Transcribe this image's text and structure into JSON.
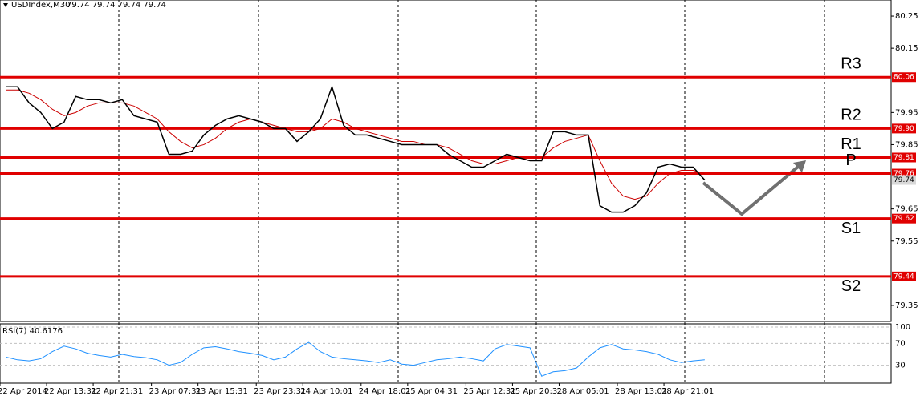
{
  "chart_data": {
    "type": "line",
    "title": "USDIndex,M30",
    "quote": "79.74 79.74 79.74 79.74",
    "color": "#000000",
    "ylim": [
      79.3,
      80.3
    ],
    "yticks": [
      80.25,
      80.15,
      79.95,
      79.85,
      79.65,
      79.55,
      79.35
    ],
    "xlim": [
      0,
      76.5
    ],
    "xticks": [
      {
        "value": 0,
        "label": "22 Apr 2014"
      },
      {
        "value": 4,
        "label": "22 Apr 13:31"
      },
      {
        "value": 8,
        "label": "22 Apr 21:31"
      },
      {
        "value": 13,
        "label": "23 Apr 07:31"
      },
      {
        "value": 17,
        "label": "23 Apr 15:31"
      },
      {
        "value": 22,
        "label": "23 Apr 23:31"
      },
      {
        "value": 26,
        "label": "24 Apr 10:01"
      },
      {
        "value": 31,
        "label": "24 Apr 18:01"
      },
      {
        "value": 35,
        "label": "25 Apr 04:31"
      },
      {
        "value": 40,
        "label": "25 Apr 12:31"
      },
      {
        "value": 44,
        "label": "25 Apr 20:31"
      },
      {
        "value": 48,
        "label": "28 Apr 05:01"
      },
      {
        "value": 53,
        "label": "28 Apr 13:01"
      },
      {
        "value": 57,
        "label": "28 Apr 21:01"
      }
    ],
    "values": [
      80.03,
      80.03,
      79.98,
      79.95,
      79.9,
      79.92,
      80.0,
      79.99,
      79.99,
      79.98,
      79.99,
      79.94,
      79.93,
      79.92,
      79.82,
      79.82,
      79.83,
      79.88,
      79.91,
      79.93,
      79.94,
      79.93,
      79.92,
      79.9,
      79.9,
      79.86,
      79.89,
      79.93,
      80.03,
      79.91,
      79.88,
      79.88,
      79.87,
      79.86,
      79.85,
      79.85,
      79.85,
      79.85,
      79.82,
      79.8,
      79.78,
      79.78,
      79.8,
      79.82,
      79.81,
      79.8,
      79.8,
      79.89,
      79.89,
      79.88,
      79.88,
      79.66,
      79.64,
      79.64,
      79.66,
      79.7,
      79.78,
      79.79,
      79.78,
      79.78,
      79.74
    ],
    "ma_color": "#cc0000",
    "ma": [
      80.02,
      80.02,
      80.01,
      79.99,
      79.96,
      79.94,
      79.95,
      79.97,
      79.98,
      79.98,
      79.98,
      79.97,
      79.95,
      79.93,
      79.89,
      79.86,
      79.84,
      79.85,
      79.87,
      79.9,
      79.92,
      79.93,
      79.92,
      79.91,
      79.9,
      79.89,
      79.89,
      79.9,
      79.93,
      79.92,
      79.9,
      79.89,
      79.88,
      79.87,
      79.86,
      79.86,
      79.85,
      79.85,
      79.84,
      79.82,
      79.8,
      79.79,
      79.79,
      79.8,
      79.81,
      79.81,
      79.81,
      79.84,
      79.86,
      79.87,
      79.88,
      79.8,
      79.73,
      79.69,
      79.68,
      79.69,
      79.73,
      79.76,
      79.77,
      79.77,
      79.76
    ],
    "level_color": "#e00000",
    "levels": [
      {
        "name": "R3",
        "value": 80.06,
        "label": "80.06"
      },
      {
        "name": "R2",
        "value": 79.9,
        "label": "79.90"
      },
      {
        "name": "R1",
        "value": 79.81,
        "label": "79.81"
      },
      {
        "name": "P",
        "value": 79.76,
        "label": "79.76"
      },
      {
        "name": "S1",
        "value": 79.62,
        "label": "79.62"
      },
      {
        "name": "S2",
        "value": 79.44,
        "label": "79.44"
      }
    ],
    "last": 79.74,
    "rsi": {
      "label": "RSI(7) 40.6176",
      "color": "#1e90ff",
      "ylim": [
        0,
        100
      ],
      "yticks": [
        100,
        70,
        30
      ],
      "values": [
        45,
        40,
        38,
        42,
        55,
        65,
        60,
        52,
        48,
        45,
        50,
        46,
        44,
        40,
        30,
        35,
        50,
        62,
        64,
        60,
        55,
        52,
        48,
        40,
        45,
        60,
        72,
        55,
        45,
        42,
        40,
        38,
        35,
        40,
        32,
        30,
        35,
        40,
        42,
        45,
        42,
        38,
        60,
        68,
        65,
        62,
        10,
        18,
        20,
        25,
        45,
        62,
        68,
        60,
        58,
        55,
        50,
        40,
        35,
        38,
        40
      ]
    }
  }
}
